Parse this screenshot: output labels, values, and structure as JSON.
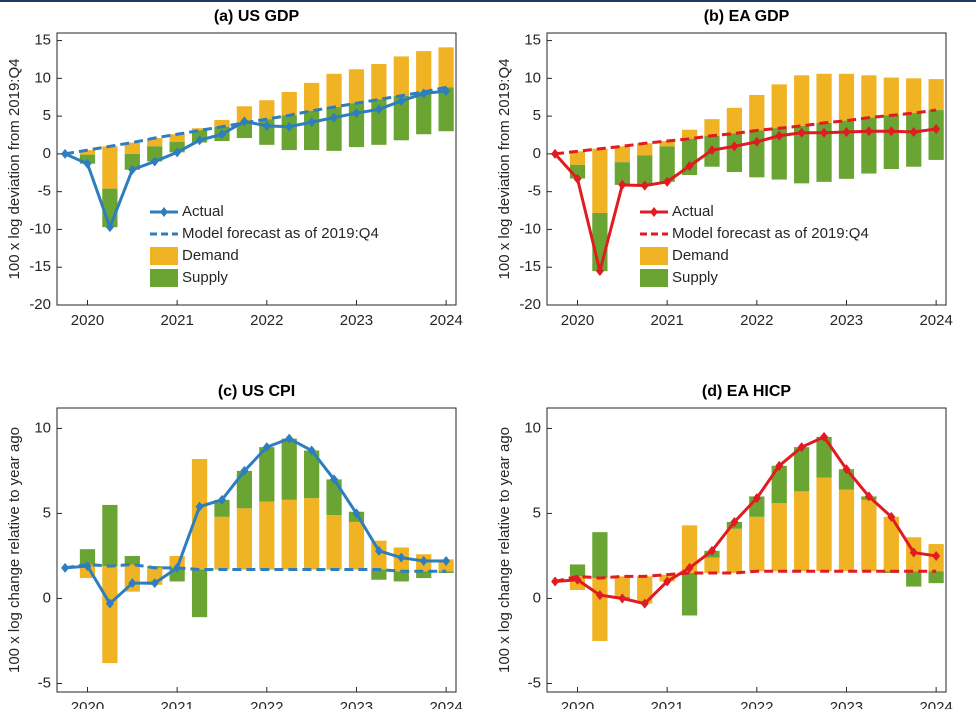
{
  "chart_data": [
    {
      "type": "combo",
      "title": "(a) US GDP",
      "ylabel": "100 x log deviation from 2019:Q4",
      "x": [
        2019.75,
        2020,
        2020.25,
        2020.5,
        2020.75,
        2021,
        2021.25,
        2021.5,
        2021.75,
        2022,
        2022.25,
        2022.5,
        2022.75,
        2023,
        2023.25,
        2023.5,
        2023.75,
        2024
      ],
      "xlim": [
        2019.66,
        2024.11
      ],
      "xticks": [
        2020,
        2021,
        2022,
        2023,
        2024
      ],
      "ylim": [
        -20,
        16
      ],
      "yticks": [
        15,
        10,
        5,
        0,
        -5,
        -10,
        -15,
        -20
      ],
      "legend": "lower left",
      "series": [
        {
          "name": "Actual",
          "kind": "line",
          "marker": "diamond",
          "color": "#2e7ebf",
          "values": [
            0,
            -1.3,
            -9.7,
            -2.1,
            -1.0,
            0.2,
            1.8,
            2.6,
            4.3,
            3.7,
            3.6,
            4.2,
            4.8,
            5.4,
            5.9,
            7.0,
            8.0,
            8.3
          ]
        },
        {
          "name": "Model forecast as of 2019:Q4",
          "kind": "dashed",
          "color": "#2e7ebf",
          "values": [
            0,
            0.5,
            1.0,
            1.5,
            2.1,
            2.6,
            3.1,
            3.6,
            4.1,
            4.6,
            5.1,
            5.7,
            6.2,
            6.7,
            7.2,
            7.7,
            8.2,
            8.8
          ]
        },
        {
          "name": "Demand",
          "kind": "bar",
          "color": "#f0b323",
          "values": [
            null,
            -0.6,
            -5.6,
            -1.5,
            -1.1,
            -1.0,
            0.3,
            0.9,
            2.2,
            2.5,
            3.1,
            3.7,
            4.4,
            4.5,
            4.7,
            5.2,
            5.4,
            5.3
          ]
        },
        {
          "name": "Supply",
          "kind": "bar",
          "color": "#6aa533",
          "values": [
            null,
            -1.2,
            -5.1,
            -2.1,
            -2.0,
            -1.4,
            -1.6,
            -1.9,
            -2.0,
            -3.4,
            -4.6,
            -5.2,
            -5.8,
            -5.8,
            -6.0,
            -5.9,
            -5.6,
            -5.8
          ]
        }
      ]
    },
    {
      "type": "combo",
      "title": "(b) EA GDP",
      "ylabel": "100 x log deviation from 2019:Q4",
      "x": [
        2019.75,
        2020,
        2020.25,
        2020.5,
        2020.75,
        2021,
        2021.25,
        2021.5,
        2021.75,
        2022,
        2022.25,
        2022.5,
        2022.75,
        2023,
        2023.25,
        2023.5,
        2023.75,
        2024
      ],
      "xlim": [
        2019.66,
        2024.11
      ],
      "xticks": [
        2020,
        2021,
        2022,
        2023,
        2024
      ],
      "ylim": [
        -20,
        16
      ],
      "yticks": [
        15,
        10,
        5,
        0,
        -5,
        -10,
        -15,
        -20
      ],
      "legend": "lower left",
      "series": [
        {
          "name": "Actual",
          "kind": "line",
          "marker": "diamond",
          "color": "#e01b22",
          "values": [
            0,
            -3.3,
            -15.5,
            -4.1,
            -4.2,
            -3.7,
            -1.6,
            0.5,
            1.0,
            1.6,
            2.4,
            2.8,
            2.8,
            2.9,
            3.0,
            3.0,
            2.9,
            3.3
          ]
        },
        {
          "name": "Model forecast as of 2019:Q4",
          "kind": "dashed",
          "color": "#e01b22",
          "values": [
            0,
            0.34,
            0.68,
            1.0,
            1.4,
            1.7,
            2.0,
            2.4,
            2.7,
            3.1,
            3.4,
            3.7,
            4.1,
            4.4,
            4.8,
            5.1,
            5.4,
            5.8
          ]
        },
        {
          "name": "Demand",
          "kind": "bar",
          "color": "#f0b323",
          "values": [
            null,
            -1.8,
            -8.5,
            -2.1,
            -1.6,
            -0.7,
            1.2,
            2.2,
            3.4,
            4.7,
            5.8,
            6.7,
            6.5,
            6.2,
            5.6,
            5.0,
            4.6,
            4.1
          ]
        },
        {
          "name": "Supply",
          "kind": "bar",
          "color": "#6aa533",
          "values": [
            null,
            -1.8,
            -7.7,
            -3.0,
            -4.0,
            -4.7,
            -4.8,
            -4.1,
            -5.1,
            -6.2,
            -6.8,
            -7.6,
            -7.8,
            -7.7,
            -7.4,
            -7.1,
            -7.1,
            -6.6
          ]
        }
      ]
    },
    {
      "type": "combo",
      "title": "(c) US CPI",
      "ylabel": "100 x log change relative to year ago",
      "x": [
        2019.75,
        2020,
        2020.25,
        2020.5,
        2020.75,
        2021,
        2021.25,
        2021.5,
        2021.75,
        2022,
        2022.25,
        2022.5,
        2022.75,
        2023,
        2023.25,
        2023.5,
        2023.75,
        2024
      ],
      "xlim": [
        2019.66,
        2024.11
      ],
      "xticks": [
        2020,
        2021,
        2022,
        2023,
        2024
      ],
      "ylim": [
        -5.5,
        11.2
      ],
      "yticks": [
        10,
        5,
        0,
        -5
      ],
      "series": [
        {
          "kind": "line",
          "marker": "diamond",
          "color": "#2e7ebf",
          "values": [
            1.8,
            1.9,
            -0.3,
            0.9,
            0.9,
            1.8,
            5.4,
            5.8,
            7.5,
            8.9,
            9.4,
            8.7,
            7.0,
            5.0,
            2.8,
            2.4,
            2.2,
            2.2
          ]
        },
        {
          "kind": "dashed",
          "color": "#2e7ebf",
          "values": [
            1.8,
            2.0,
            1.9,
            2.0,
            1.8,
            1.8,
            1.7,
            1.7,
            1.7,
            1.7,
            1.7,
            1.7,
            1.7,
            1.7,
            1.7,
            1.6,
            1.6,
            1.6
          ]
        },
        {
          "kind": "bar",
          "color": "#f0b323",
          "values": [
            null,
            -0.8,
            -5.7,
            -1.6,
            -1.0,
            0.7,
            6.5,
            3.1,
            3.6,
            4.0,
            4.1,
            4.2,
            3.2,
            2.8,
            1.7,
            1.4,
            1.0,
            0.7
          ]
        },
        {
          "kind": "bar",
          "color": "#6aa533",
          "values": [
            null,
            0.9,
            3.6,
            0.5,
            0.1,
            -0.8,
            -2.8,
            1.0,
            2.2,
            3.2,
            3.6,
            2.8,
            2.1,
            0.6,
            -0.6,
            -0.6,
            -0.4,
            -0.1
          ]
        }
      ]
    },
    {
      "type": "combo",
      "title": "(d) EA HICP",
      "ylabel": "100 x log change relative to year ago",
      "x": [
        2019.75,
        2020,
        2020.25,
        2020.5,
        2020.75,
        2021,
        2021.25,
        2021.5,
        2021.75,
        2022,
        2022.25,
        2022.5,
        2022.75,
        2023,
        2023.25,
        2023.5,
        2023.75,
        2024
      ],
      "xlim": [
        2019.66,
        2024.11
      ],
      "xticks": [
        2020,
        2021,
        2022,
        2023,
        2024
      ],
      "ylim": [
        -5.5,
        11.2
      ],
      "yticks": [
        10,
        5,
        0,
        -5
      ],
      "series": [
        {
          "kind": "line",
          "marker": "diamond",
          "color": "#e01b22",
          "values": [
            1.0,
            1.1,
            0.2,
            0.0,
            -0.3,
            1.0,
            1.8,
            2.8,
            4.5,
            5.9,
            7.8,
            8.9,
            9.5,
            7.6,
            6.0,
            4.8,
            2.7,
            2.5
          ]
        },
        {
          "kind": "dashed",
          "color": "#e01b22",
          "values": [
            1.0,
            1.3,
            1.2,
            1.3,
            1.3,
            1.4,
            1.5,
            1.5,
            1.5,
            1.6,
            1.6,
            1.6,
            1.6,
            1.6,
            1.6,
            1.6,
            1.6,
            1.6
          ]
        },
        {
          "kind": "bar",
          "color": "#f0b323",
          "values": [
            null,
            -0.8,
            -3.7,
            -1.2,
            -1.6,
            -0.4,
            2.8,
            0.9,
            2.6,
            3.2,
            4.0,
            4.7,
            5.5,
            4.8,
            4.2,
            3.2,
            2.0,
            1.6
          ]
        },
        {
          "kind": "bar",
          "color": "#6aa533",
          "values": [
            null,
            0.7,
            2.7,
            -0.1,
            0.0,
            0.0,
            -2.5,
            0.4,
            0.4,
            1.2,
            2.2,
            2.6,
            2.4,
            1.2,
            0.2,
            -0.1,
            -0.9,
            -0.7
          ]
        }
      ]
    }
  ]
}
